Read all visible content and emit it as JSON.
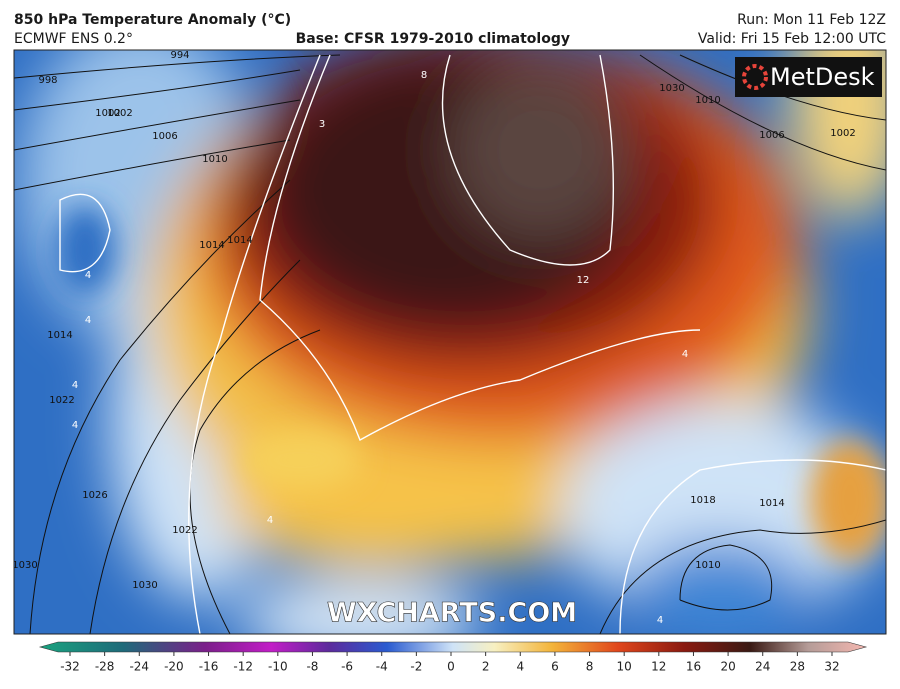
{
  "header": {
    "title": "850 hPa Temperature Anomaly (°C)",
    "model": "ECMWF ENS 0.2°",
    "base": "Base: CFSR 1979-2010 climatology",
    "run": "Run: Mon 11 Feb 12Z",
    "valid": "Valid: Fri 15 Feb 12:00 UTC"
  },
  "logo": "MetDesk",
  "watermark": "WXCHARTS.COM",
  "isobar_labels": [
    "994",
    "998",
    "1002",
    "1006",
    "1010",
    "1014",
    "1002",
    "1014",
    "1022",
    "1026",
    "1030",
    "1022",
    "1030",
    "1010",
    "1006",
    "1002",
    "1030",
    "1018",
    "1014",
    "1010",
    "1014"
  ],
  "anomaly_labels": [
    "8",
    "3",
    "12",
    "4",
    "4",
    "4",
    "4",
    "4",
    "4",
    "4"
  ],
  "colorbar": {
    "ticks": [
      -32,
      -28,
      -24,
      -20,
      -16,
      -12,
      -10,
      -8,
      -6,
      -4,
      -2,
      0,
      2,
      4,
      6,
      8,
      10,
      12,
      16,
      20,
      24,
      28,
      32
    ]
  }
}
